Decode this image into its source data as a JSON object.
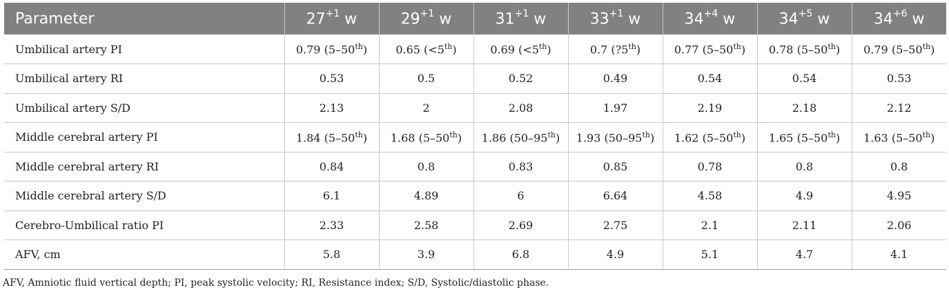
{
  "table": {
    "columns": [
      {
        "base": "Parameter",
        "sup": "",
        "suffix": ""
      },
      {
        "base": "27",
        "sup": "+1",
        "suffix": " w"
      },
      {
        "base": "29",
        "sup": "+1",
        "suffix": " w"
      },
      {
        "base": "31",
        "sup": "+1",
        "suffix": " w"
      },
      {
        "base": "33",
        "sup": "+1",
        "suffix": " w"
      },
      {
        "base": "34",
        "sup": "+4",
        "suffix": " w"
      },
      {
        "base": "34",
        "sup": "+5",
        "suffix": " w"
      },
      {
        "base": "34",
        "sup": "+6",
        "suffix": " w"
      }
    ],
    "rows": [
      {
        "label": "Umbilical artery PI",
        "cells": [
          {
            "value": "0.79 (5–50",
            "sup": "th",
            "tail": ")"
          },
          {
            "value": "0.65 (<5",
            "sup": "th",
            "tail": ")"
          },
          {
            "value": "0.69 (<5",
            "sup": "th",
            "tail": ")"
          },
          {
            "value": "0.7 (?5",
            "sup": "th",
            "tail": ")"
          },
          {
            "value": "0.77 (5–50",
            "sup": "th",
            "tail": ")"
          },
          {
            "value": "0.78 (5–50",
            "sup": "th",
            "tail": ")"
          },
          {
            "value": "0.79 (5–50",
            "sup": "th",
            "tail": ")"
          }
        ]
      },
      {
        "label": "Umbilical artery RI",
        "cells": [
          {
            "value": "0.53"
          },
          {
            "value": "0.5"
          },
          {
            "value": "0.52"
          },
          {
            "value": "0.49"
          },
          {
            "value": "0.54"
          },
          {
            "value": "0.54"
          },
          {
            "value": "0.53"
          }
        ]
      },
      {
        "label": "Umbilical artery S/D",
        "cells": [
          {
            "value": "2.13"
          },
          {
            "value": "2"
          },
          {
            "value": "2.08"
          },
          {
            "value": "1.97"
          },
          {
            "value": "2.19"
          },
          {
            "value": "2.18"
          },
          {
            "value": "2.12"
          }
        ]
      },
      {
        "label": "Middle cerebral artery PI",
        "cells": [
          {
            "value": "1.84 (5–50",
            "sup": "th",
            "tail": ")"
          },
          {
            "value": "1.68 (5–50",
            "sup": "th",
            "tail": ")"
          },
          {
            "value": "1.86 (50–95",
            "sup": "th",
            "tail": ")"
          },
          {
            "value": "1.93 (50–95",
            "sup": "th",
            "tail": ")"
          },
          {
            "value": "1.62 (5–50",
            "sup": "th",
            "tail": ")"
          },
          {
            "value": "1.65 (5–50",
            "sup": "th",
            "tail": ")"
          },
          {
            "value": "1.63 (5–50",
            "sup": "th",
            "tail": ")"
          }
        ]
      },
      {
        "label": "Middle cerebral artery RI",
        "cells": [
          {
            "value": "0.84"
          },
          {
            "value": "0.8"
          },
          {
            "value": "0.83"
          },
          {
            "value": "0.85"
          },
          {
            "value": "0.78"
          },
          {
            "value": "0.8"
          },
          {
            "value": "0.8"
          }
        ]
      },
      {
        "label": "Middle cerebral artery S/D",
        "cells": [
          {
            "value": "6.1"
          },
          {
            "value": "4.89"
          },
          {
            "value": "6"
          },
          {
            "value": "6.64"
          },
          {
            "value": "4.58"
          },
          {
            "value": "4.9"
          },
          {
            "value": "4.95"
          }
        ]
      },
      {
        "label": "Cerebro-Umbilical ratio PI",
        "cells": [
          {
            "value": "2.33"
          },
          {
            "value": "2.58"
          },
          {
            "value": "2.69"
          },
          {
            "value": "2.75"
          },
          {
            "value": "2.1"
          },
          {
            "value": "2.11"
          },
          {
            "value": "2.06"
          }
        ]
      },
      {
        "label": "AFV, cm",
        "cells": [
          {
            "value": "5.8"
          },
          {
            "value": "3.9"
          },
          {
            "value": "6.8"
          },
          {
            "value": "4.9"
          },
          {
            "value": "5.1"
          },
          {
            "value": "4.7"
          },
          {
            "value": "4.1"
          }
        ]
      }
    ]
  },
  "footnote": "AFV, Amniotic fluid vertical depth; PI, peak systolic velocity; RI, Resistance index; S/D, Systolic/diastolic phase.",
  "colors": {
    "header_bg": "#7f8183",
    "header_text": "#ffffff",
    "grid": "#c8c8c8",
    "text": "#222222"
  }
}
